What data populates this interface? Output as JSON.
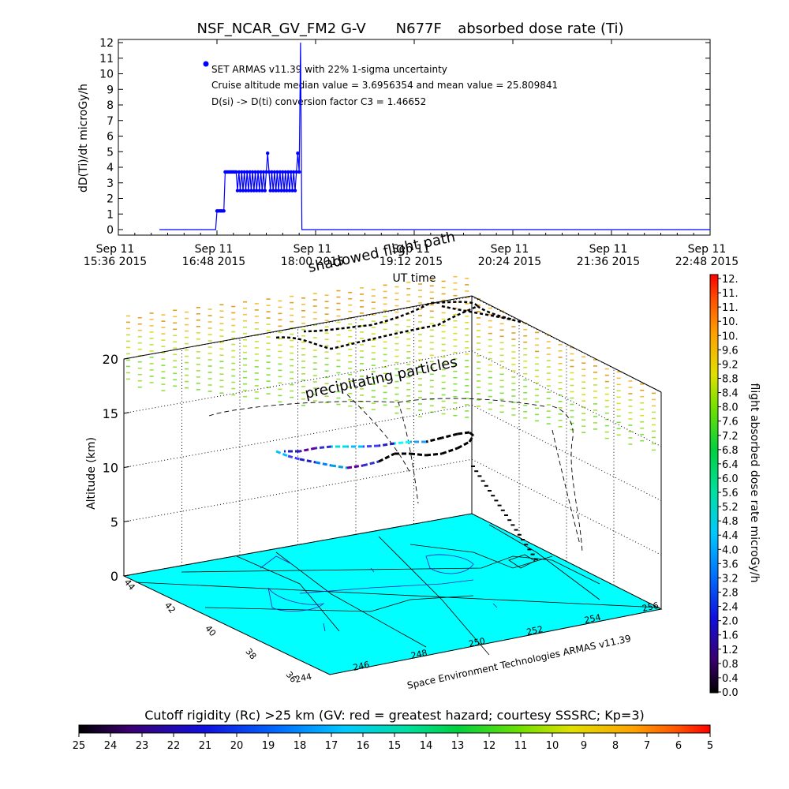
{
  "top_plot": {
    "title_parts": [
      "NSF_NCAR_GV_FM2 G-V",
      "N677F",
      "absorbed dose rate (Ti)"
    ],
    "ylabel": "dD(Ti)/dt microGy/h",
    "xlabel": "UT time",
    "yticks": [
      "0",
      "1",
      "2",
      "3",
      "4",
      "5",
      "6",
      "7",
      "8",
      "9",
      "10",
      "11",
      "12"
    ],
    "xticks": [
      {
        "line1": "Sep 11",
        "line2": "15:36 2015"
      },
      {
        "line1": "Sep 11",
        "line2": "16:48 2015"
      },
      {
        "line1": "Sep 11",
        "line2": "18:00 2015"
      },
      {
        "line1": "Sep 11",
        "line2": "19:12 2015"
      },
      {
        "line1": "Sep 11",
        "line2": "20:24 2015"
      },
      {
        "line1": "Sep 11",
        "line2": "21:36 2015"
      },
      {
        "line1": "Sep 11",
        "line2": "22:48 2015"
      }
    ],
    "annotations": [
      "SET ARMAS v11.39 with 22% 1-sigma uncertainty",
      "Cruise altitude median value = 3.6956354 and mean value = 25.809841",
      "D(si) -> D(ti) conversion factor C3 = 1.46652"
    ],
    "line_color": "#0000ff"
  },
  "chart_data": [
    {
      "type": "line",
      "title": "NSF_NCAR_GV_FM2 G-V    N677F  absorbed dose rate (Ti)",
      "xlabel": "UT time",
      "ylabel": "dD(Ti)/dt microGy/h",
      "xlim": [
        "15:36",
        "22:48"
      ],
      "ylim": [
        0,
        12
      ],
      "series": [
        {
          "x_minutes_after_1536": [
            30,
            71,
            72,
            73,
            74,
            75,
            76,
            77,
            78,
            79,
            80,
            81,
            82,
            83,
            84,
            85,
            86,
            87,
            88,
            89,
            90,
            91,
            92,
            93,
            94,
            95,
            96,
            97,
            98,
            99,
            100,
            101,
            102,
            103,
            104,
            105,
            106,
            107,
            108,
            109,
            110,
            111,
            112,
            113,
            114,
            115,
            116,
            117,
            118,
            119,
            120,
            121,
            122,
            123,
            124,
            125,
            126,
            127,
            128,
            129,
            130,
            131,
            132,
            133,
            134,
            135,
            136,
            137,
            138,
            139,
            140,
            141,
            142,
            143,
            146,
            147,
            148,
            149,
            150,
            151,
            152,
            153,
            154,
            155,
            156,
            157,
            158,
            159,
            160,
            162,
            163,
            165,
            166,
            167,
            170,
            175,
            200,
            300,
            432
          ],
          "y": [
            0,
            0,
            1.2,
            1.2,
            1.2,
            1.2,
            1.2,
            1.2,
            3.7,
            3.7,
            3.7,
            3.7,
            3.7,
            3.7,
            3.7,
            3.7,
            3.7,
            2.5,
            3.7,
            2.5,
            3.7,
            2.5,
            3.7,
            2.5,
            3.7,
            2.5,
            3.7,
            2.5,
            3.7,
            2.5,
            3.7,
            2.5,
            3.7,
            2.5,
            3.7,
            2.5,
            3.7,
            2.5,
            3.7,
            4.9,
            3.7,
            2.5,
            3.7,
            2.5,
            3.7,
            2.5,
            3.7,
            2.5,
            3.7,
            2.5,
            3.7,
            2.5,
            3.7,
            2.5,
            3.7,
            2.5,
            3.7,
            2.5,
            3.7,
            2.5,
            3.7,
            4.9,
            3.7,
            12,
            0,
            0,
            0,
            0,
            0,
            0,
            0,
            0,
            0,
            0,
            0,
            0,
            0,
            0,
            0,
            0,
            0,
            0,
            0,
            0,
            0,
            0,
            0,
            0,
            0,
            0,
            0,
            0,
            0,
            0,
            0,
            0,
            0,
            0,
            0
          ]
        }
      ]
    },
    {
      "type": "scatter",
      "subtype": "3d-trajectory",
      "zlabel": "Altitude (km)",
      "zticks": [
        0,
        5,
        10,
        15,
        20
      ],
      "xticks": [
        "244",
        "246",
        "248",
        "250",
        "252",
        "254",
        "256"
      ],
      "yticks": [
        "36",
        "38",
        "40",
        "42",
        "44"
      ],
      "annotations": [
        "precipitating particles",
        "shadowed flight path"
      ],
      "credit": "Space Environment Technologies ARMAS v11.39"
    }
  ],
  "colorbar_right": {
    "label": "flight absorbed dose rate microGy/h",
    "ticks": [
      "12.",
      "11.",
      "11.",
      "10.",
      "10.",
      "9.6",
      "9.2",
      "8.8",
      "8.4",
      "8.0",
      "7.6",
      "7.2",
      "6.8",
      "6.4",
      "6.0",
      "5.6",
      "5.2",
      "4.8",
      "4.4",
      "4.0",
      "3.6",
      "3.2",
      "2.8",
      "2.4",
      "2.0",
      "1.6",
      "1.2",
      "0.8",
      "0.4",
      "0.0"
    ]
  },
  "colorbar_bottom": {
    "label": "Cutoff rigidity (Rc) >25 km (GV: red = greatest hazard; courtesy SSSRC; Kp=3)",
    "ticks": [
      "25",
      "24",
      "23",
      "22",
      "21",
      "20",
      "19",
      "18",
      "17",
      "16",
      "15",
      "14",
      "13",
      "12",
      "11",
      "10",
      "9",
      "8",
      "7",
      "6",
      "5"
    ]
  },
  "colors": {
    "floor": "#00ffff",
    "trajectory": "#000000",
    "plot_line": "#0000ff"
  }
}
